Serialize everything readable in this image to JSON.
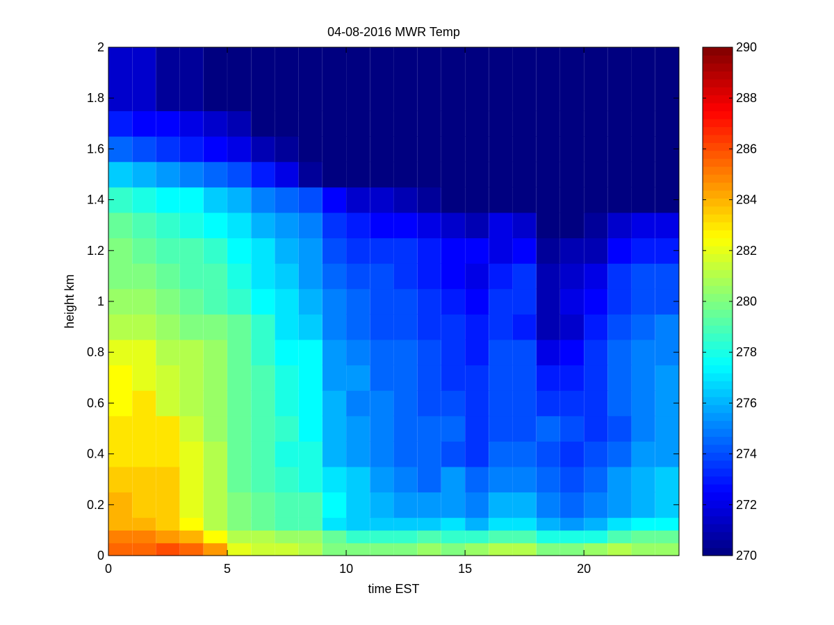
{
  "chart_data": {
    "type": "heatmap",
    "title": "04-08-2016 MWR Temp",
    "xlabel": "time EST",
    "ylabel": "height km",
    "xlim": [
      0,
      24
    ],
    "ylim": [
      0,
      2
    ],
    "xticks": [
      "0",
      "5",
      "10",
      "15",
      "20"
    ],
    "xtick_values": [
      0,
      5,
      10,
      15,
      20
    ],
    "yticks": [
      "0",
      "0.2",
      "0.4",
      "0.6",
      "0.8",
      "1",
      "1.2",
      "1.4",
      "1.6",
      "1.8",
      "2"
    ],
    "ytick_values": [
      0,
      0.2,
      0.4,
      0.6,
      0.8,
      1.0,
      1.2,
      1.4,
      1.6,
      1.8,
      2.0
    ],
    "colormap": "jet",
    "clim": [
      270,
      290
    ],
    "colorbar_ticks": [
      "270",
      "272",
      "274",
      "276",
      "278",
      "280",
      "282",
      "284",
      "286",
      "288",
      "290"
    ],
    "colorbar_tick_values": [
      270,
      272,
      274,
      276,
      278,
      280,
      282,
      284,
      286,
      288,
      290
    ],
    "x": [
      0,
      1,
      2,
      3,
      4,
      5,
      6,
      7,
      8,
      9,
      10,
      11,
      12,
      13,
      14,
      15,
      16,
      17,
      18,
      19,
      20,
      21,
      22,
      23
    ],
    "heights": [
      0,
      0.05,
      0.1,
      0.15,
      0.25,
      0.35,
      0.45,
      0.55,
      0.65,
      0.75,
      0.85,
      0.95,
      1.05,
      1.15,
      1.25,
      1.35,
      1.45,
      1.55,
      1.65,
      1.75,
      2.0
    ],
    "values": [
      [
        285.5,
        285.5,
        286.0,
        285.5,
        284.5,
        282.0,
        281.5,
        281.5,
        281.0,
        280.0,
        280.0,
        280.0,
        280.0,
        280.5,
        280.0,
        280.5,
        281.0,
        281.0,
        280.0,
        280.0,
        280.5,
        281.0,
        280.5,
        280.5
      ],
      [
        285.0,
        285.0,
        284.5,
        284.0,
        282.5,
        281.0,
        281.0,
        280.5,
        280.5,
        279.5,
        278.5,
        278.5,
        278.5,
        279.0,
        278.5,
        278.5,
        279.0,
        279.0,
        278.0,
        278.0,
        278.0,
        279.0,
        279.5,
        279.5
      ],
      [
        284.0,
        284.0,
        283.5,
        282.5,
        281.0,
        280.0,
        279.5,
        279.0,
        279.0,
        277.0,
        276.5,
        276.5,
        276.5,
        276.5,
        277.0,
        276.0,
        277.0,
        277.0,
        276.0,
        275.5,
        276.0,
        277.0,
        277.5,
        277.5
      ],
      [
        284.0,
        283.5,
        283.5,
        282.0,
        281.0,
        280.0,
        279.5,
        279.0,
        279.0,
        277.5,
        276.5,
        276.0,
        275.5,
        275.5,
        275.5,
        275.0,
        276.0,
        276.0,
        275.0,
        274.5,
        275.0,
        275.5,
        276.0,
        276.5
      ],
      [
        283.5,
        283.5,
        283.5,
        282.0,
        281.0,
        279.5,
        279.0,
        278.5,
        278.0,
        277.0,
        276.5,
        275.5,
        275.0,
        274.5,
        275.5,
        274.5,
        275.0,
        275.0,
        274.5,
        274.0,
        274.5,
        275.5,
        276.0,
        276.5
      ],
      [
        283.0,
        283.0,
        283.0,
        282.0,
        281.0,
        279.5,
        279.0,
        278.0,
        278.0,
        276.0,
        275.5,
        275.0,
        274.5,
        274.5,
        274.0,
        273.5,
        274.5,
        274.5,
        274.0,
        273.5,
        274.0,
        274.5,
        275.5,
        275.5
      ],
      [
        283.0,
        283.0,
        283.0,
        281.5,
        280.5,
        279.5,
        279.0,
        278.5,
        277.5,
        276.0,
        275.5,
        275.0,
        274.5,
        274.5,
        274.5,
        273.5,
        274.0,
        274.0,
        274.5,
        274.0,
        273.5,
        274.0,
        275.0,
        275.5
      ],
      [
        282.5,
        283.0,
        281.5,
        281.0,
        280.5,
        279.5,
        279.0,
        278.0,
        277.5,
        276.0,
        275.0,
        275.0,
        274.5,
        274.0,
        274.0,
        273.5,
        274.0,
        274.0,
        273.5,
        273.5,
        273.5,
        274.5,
        275.0,
        275.5
      ],
      [
        282.5,
        282.0,
        281.5,
        281.0,
        280.5,
        279.5,
        279.0,
        278.0,
        277.5,
        275.5,
        275.5,
        274.5,
        274.5,
        274.0,
        273.5,
        273.5,
        274.0,
        274.0,
        273.0,
        273.0,
        273.5,
        274.5,
        275.0,
        275.5
      ],
      [
        282.0,
        282.0,
        281.0,
        281.0,
        280.5,
        279.5,
        278.5,
        277.5,
        277.5,
        275.5,
        275.0,
        274.5,
        274.5,
        274.0,
        273.5,
        273.0,
        274.0,
        274.0,
        272.0,
        272.5,
        273.5,
        274.5,
        275.0,
        275.0
      ],
      [
        281.0,
        281.0,
        280.5,
        280.0,
        280.0,
        279.5,
        278.5,
        277.0,
        276.5,
        275.0,
        274.5,
        274.0,
        274.0,
        273.5,
        273.5,
        273.0,
        273.5,
        273.0,
        271.0,
        271.5,
        273.0,
        274.0,
        274.5,
        275.0
      ],
      [
        280.5,
        280.5,
        280.0,
        279.5,
        279.0,
        278.5,
        277.5,
        277.0,
        276.0,
        275.0,
        274.5,
        274.0,
        274.0,
        273.5,
        273.0,
        272.5,
        273.5,
        273.5,
        271.0,
        272.0,
        272.5,
        273.5,
        274.0,
        274.0
      ],
      [
        280.0,
        280.0,
        279.5,
        279.0,
        279.0,
        278.0,
        277.0,
        276.5,
        275.5,
        274.5,
        274.0,
        274.0,
        273.5,
        273.0,
        272.5,
        272.0,
        273.0,
        273.5,
        271.0,
        271.5,
        272.0,
        273.5,
        274.0,
        274.0
      ],
      [
        280.0,
        279.5,
        279.0,
        279.0,
        278.5,
        277.5,
        277.0,
        276.0,
        275.5,
        274.0,
        273.5,
        273.5,
        273.5,
        273.0,
        272.5,
        272.5,
        272.0,
        272.5,
        270.5,
        271.0,
        271.0,
        272.5,
        273.0,
        273.0
      ],
      [
        279.5,
        279.0,
        278.5,
        278.0,
        277.5,
        277.0,
        276.0,
        275.5,
        275.0,
        273.5,
        273.0,
        272.5,
        272.5,
        272.0,
        271.5,
        271.0,
        272.0,
        271.5,
        270.0,
        270.0,
        270.5,
        271.5,
        272.0,
        272.0
      ],
      [
        278.5,
        278.0,
        277.5,
        277.5,
        276.5,
        276.0,
        275.0,
        274.5,
        274.0,
        272.5,
        271.5,
        271.5,
        271.0,
        270.5,
        270.0,
        270.0,
        270.0,
        270.0,
        270.0,
        270.0,
        270.0,
        270.0,
        270.0,
        270.0
      ],
      [
        276.5,
        276.0,
        275.5,
        275.0,
        274.5,
        274.0,
        273.0,
        272.0,
        270.5,
        270.0,
        270.0,
        270.0,
        270.0,
        270.0,
        270.0,
        270.0,
        270.0,
        270.0,
        270.0,
        270.0,
        270.0,
        270.0,
        270.0,
        270.0
      ],
      [
        274.5,
        274.0,
        273.5,
        273.0,
        272.5,
        272.0,
        271.0,
        270.5,
        270.0,
        270.0,
        270.0,
        270.0,
        270.0,
        270.0,
        270.0,
        270.0,
        270.0,
        270.0,
        270.0,
        270.0,
        270.0,
        270.0,
        270.0,
        270.0
      ],
      [
        273.0,
        272.5,
        272.5,
        272.0,
        271.5,
        271.0,
        270.0,
        270.0,
        270.0,
        270.0,
        270.0,
        270.0,
        270.0,
        270.0,
        270.0,
        270.0,
        270.0,
        270.0,
        270.0,
        270.0,
        270.0,
        270.0,
        270.0,
        270.0
      ],
      [
        271.5,
        271.5,
        270.5,
        270.5,
        270.0,
        270.0,
        270.0,
        270.0,
        270.0,
        270.0,
        270.0,
        270.0,
        270.0,
        270.0,
        270.0,
        270.0,
        270.0,
        270.0,
        270.0,
        270.0,
        270.0,
        270.0,
        270.0,
        270.0
      ],
      [
        270.0,
        270.0,
        270.0,
        270.0,
        270.0,
        270.0,
        270.0,
        270.0,
        270.0,
        270.0,
        270.0,
        270.0,
        270.0,
        270.0,
        270.0,
        270.0,
        270.0,
        270.0,
        270.0,
        270.0,
        270.0,
        270.0,
        270.0,
        270.0
      ]
    ]
  }
}
